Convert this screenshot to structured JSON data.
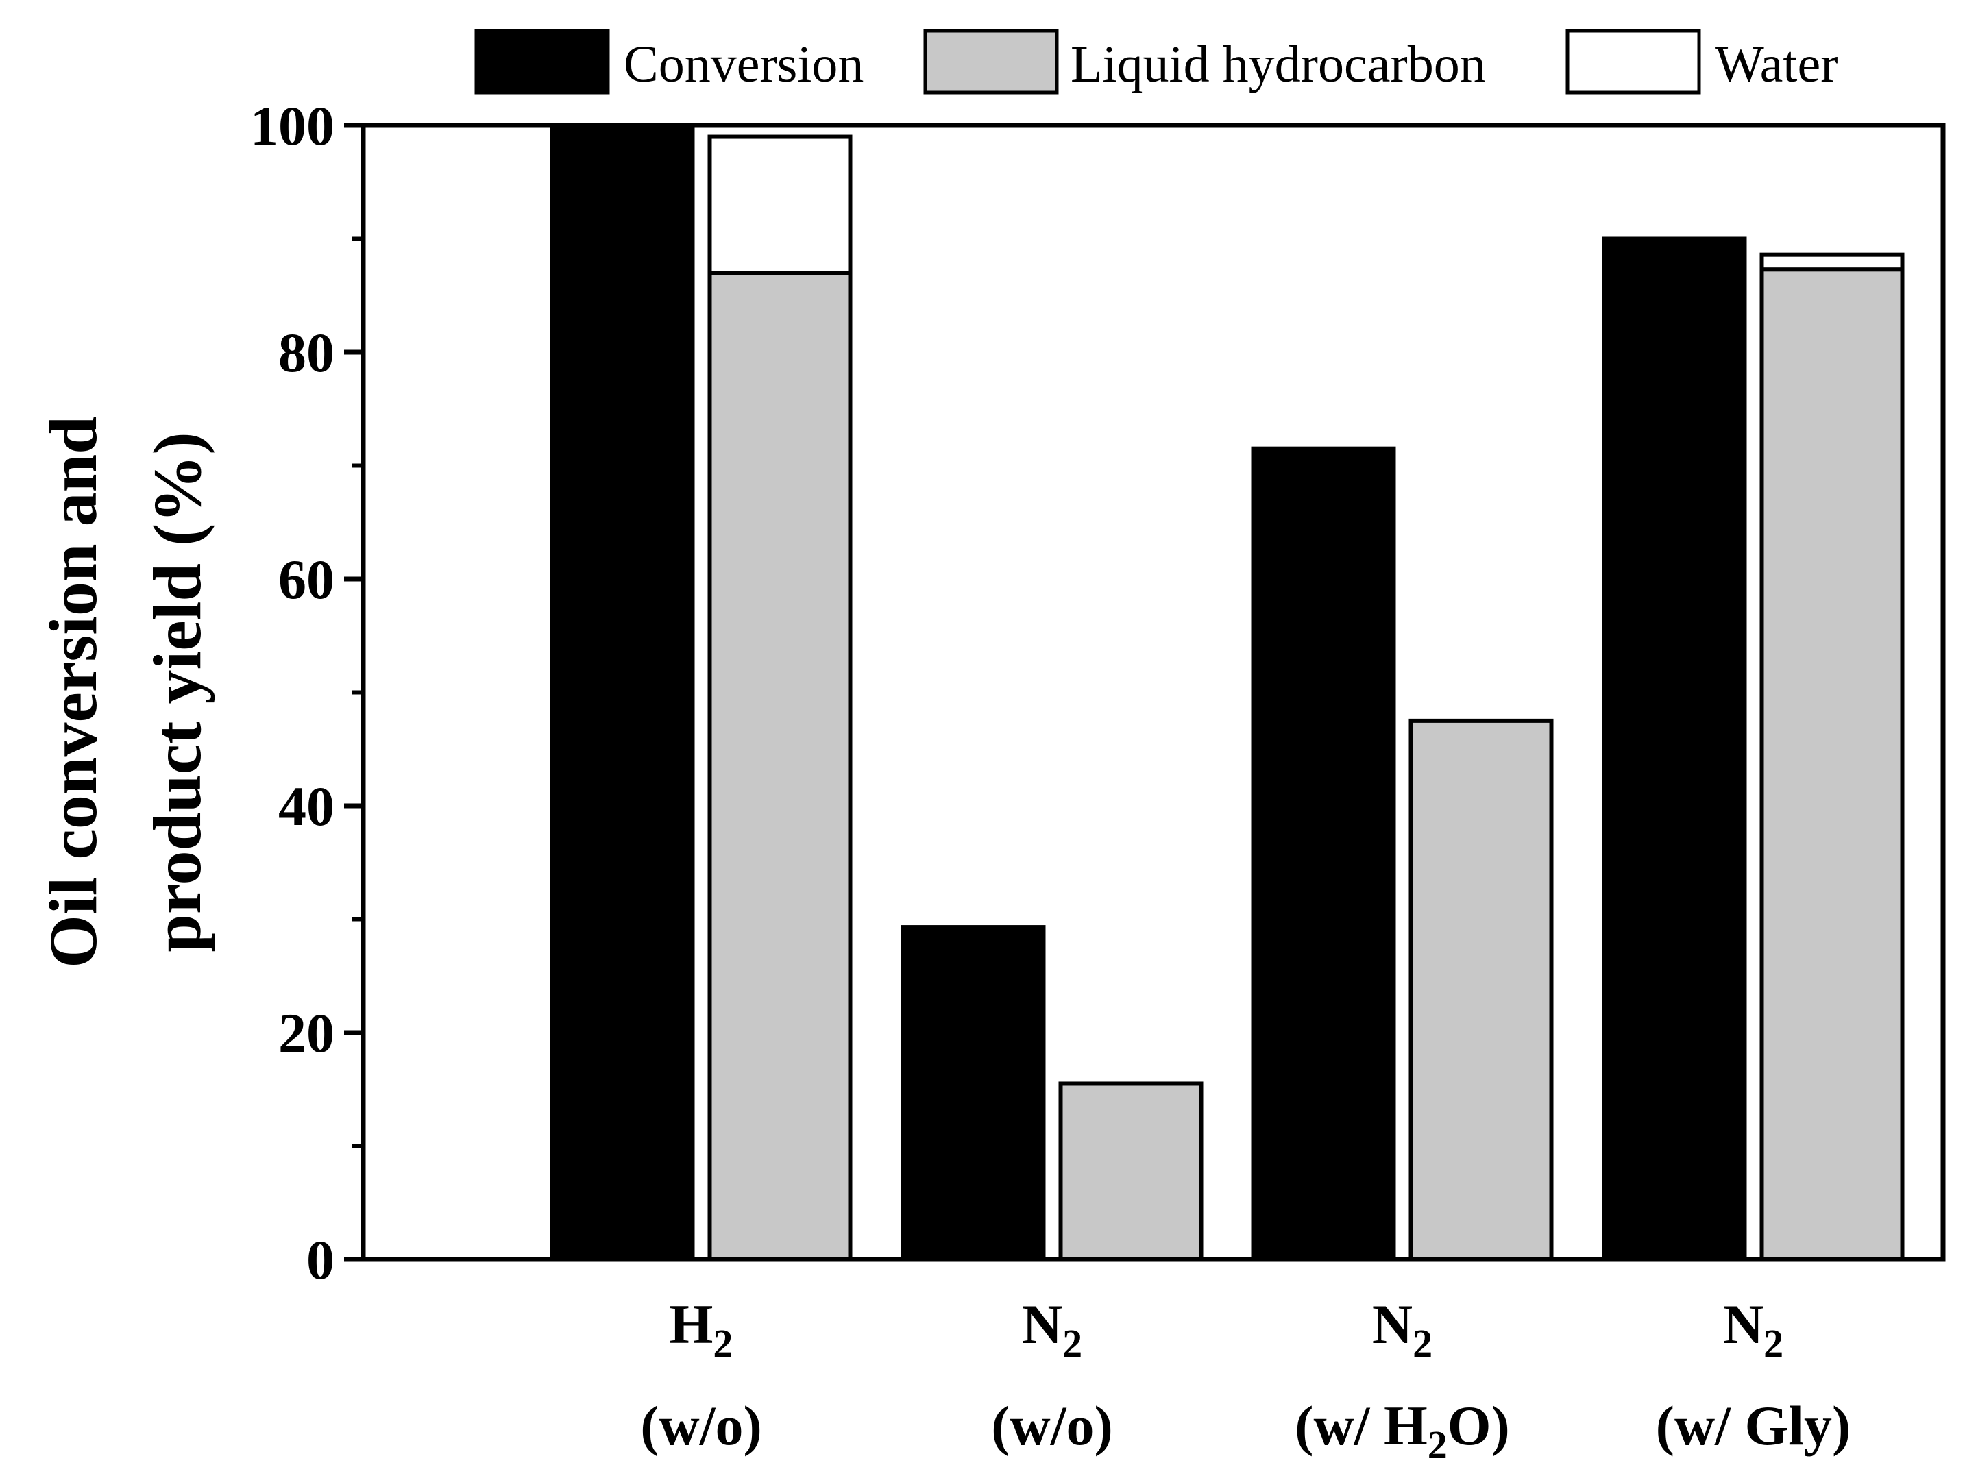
{
  "chart_data": {
    "type": "bar",
    "title": "",
    "xlabel": "",
    "ylabel_lines": [
      "Oil conversion and",
      "product yield (%)"
    ],
    "ylim": [
      0,
      100
    ],
    "yticks": [
      0,
      20,
      40,
      60,
      80,
      100
    ],
    "yticks_minor": [
      10,
      30,
      50,
      70,
      90
    ],
    "grid": false,
    "legend_position": "top",
    "categories": [
      {
        "main": "H",
        "sub": "2",
        "cond_pre": "(w/o)",
        "cond_sub": "",
        "cond_post": ""
      },
      {
        "main": "N",
        "sub": "2",
        "cond_pre": "(w/o)",
        "cond_sub": "",
        "cond_post": ""
      },
      {
        "main": "N",
        "sub": "2",
        "cond_pre": "(w/ H",
        "cond_sub": "2",
        "cond_post": "O)"
      },
      {
        "main": "N",
        "sub": "2",
        "cond_pre": "(w/ Gly)",
        "cond_sub": "",
        "cond_post": ""
      }
    ],
    "series": [
      {
        "name": "Conversion",
        "color": "#000000",
        "group": "conversion",
        "values": [
          100,
          29.3,
          71.5,
          90
        ]
      },
      {
        "name": "Liquid hydrocarbon",
        "color": "#c8c8c8",
        "group": "yield",
        "values": [
          87,
          15.5,
          47.5,
          87.3
        ]
      },
      {
        "name": "Water",
        "color": "#ffffff",
        "group": "yield",
        "values": [
          12,
          0,
          0,
          1.3
        ]
      }
    ]
  }
}
